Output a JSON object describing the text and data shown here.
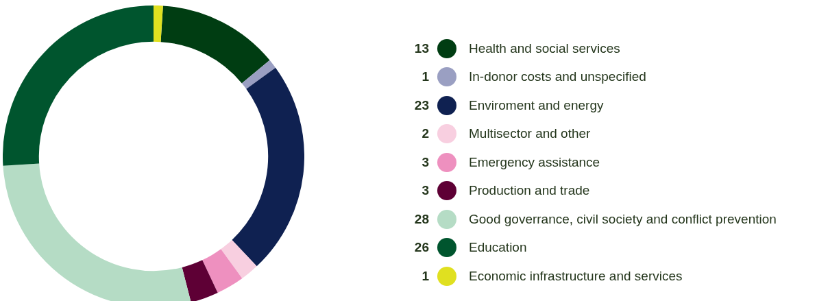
{
  "chart_data": {
    "type": "donut",
    "categories": [
      "Health and social services",
      "In-donor costs and unspecified",
      "Enviroment and energy",
      "Multisector and other",
      "Emergency assistance",
      "Production and trade",
      "Good goverrance, civil society and conflict prevention",
      "Education",
      "Economic infrastructure and services"
    ],
    "values": [
      13,
      1,
      23,
      2,
      3,
      3,
      28,
      26,
      1
    ],
    "colors": [
      "#003d12",
      "#9a9fc2",
      "#0f2151",
      "#f8cfe0",
      "#ee90bf",
      "#5e0035",
      "#b5dcc5",
      "#00552e",
      "#e0e020"
    ],
    "data_labels": true,
    "legend": "right"
  }
}
